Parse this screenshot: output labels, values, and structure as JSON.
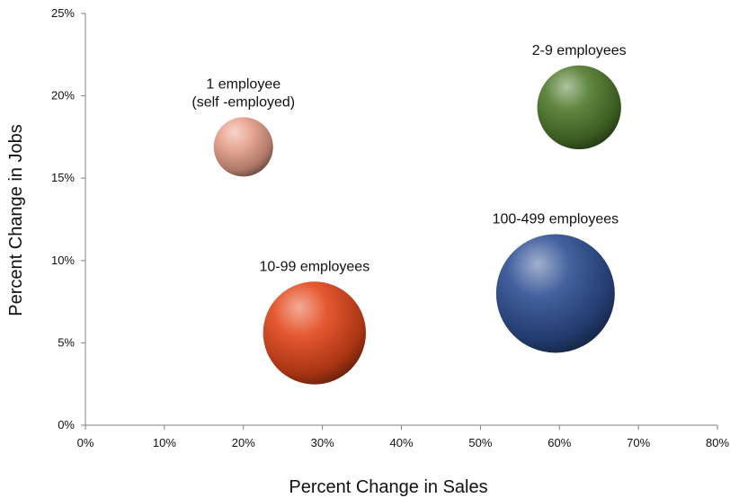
{
  "chart_data": {
    "type": "scatter",
    "style": "bubble",
    "title": "",
    "xlabel": "Percent Change in Sales",
    "ylabel": "Percent Change in Jobs",
    "xlim": [
      0,
      0.8
    ],
    "ylim": [
      0,
      0.25
    ],
    "x_ticks": [
      "0%",
      "10%",
      "20%",
      "30%",
      "40%",
      "50%",
      "60%",
      "70%",
      "80%"
    ],
    "y_ticks": [
      "0%",
      "5%",
      "10%",
      "15%",
      "20%",
      "25%"
    ],
    "grid": false,
    "legend": "none",
    "series": [
      {
        "label_lines": [
          "1 employee",
          "(self -employed)"
        ],
        "x": 0.2,
        "y": 0.169,
        "size": 1,
        "color": "#e8a08a"
      },
      {
        "label_lines": [
          "2-9 employees"
        ],
        "x": 0.625,
        "y": 0.193,
        "size": 2,
        "color": "#4f7a2c"
      },
      {
        "label_lines": [
          "10-99 employees"
        ],
        "x": 0.29,
        "y": 0.056,
        "size": 3,
        "color": "#e2461a"
      },
      {
        "label_lines": [
          "100-499 employees"
        ],
        "x": 0.595,
        "y": 0.08,
        "size": 4,
        "color": "#2e4f93"
      }
    ]
  }
}
